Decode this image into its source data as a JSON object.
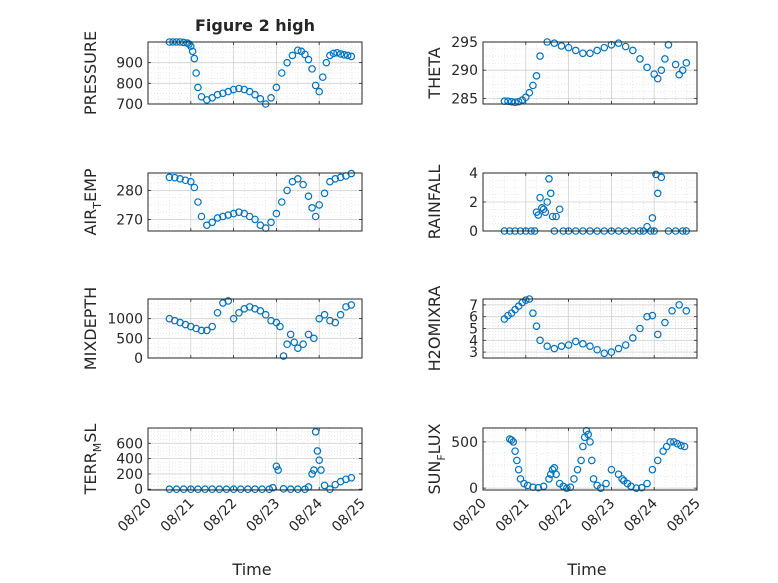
{
  "figure": {
    "title": "Figure 2 high"
  },
  "style": {
    "marker_color": "#0072BD",
    "axis_color": "#262626",
    "grid_color": "#d9d9d9"
  },
  "x_axis": {
    "type": "date",
    "tick_values": [
      "2018-08-20",
      "2018-08-21",
      "2018-08-22",
      "2018-08-23",
      "2018-08-24",
      "2018-08-25"
    ],
    "tick_labels": [
      "08/20",
      "08/21",
      "08/22",
      "08/23",
      "08/24",
      "08/25"
    ],
    "label": "Time",
    "range": [
      "2018-08-20",
      "2018-08-25"
    ]
  },
  "chart_data": [
    {
      "type": "scatter",
      "title": "Figure 2 high",
      "ylabel": "PRESSURE",
      "ylim": [
        700,
        1000
      ],
      "yticks": [
        700,
        800,
        900
      ],
      "ytick_labels": [
        "700",
        "800",
        "900"
      ],
      "grid": "on",
      "minor_grid": "on",
      "marker": "open-circle",
      "x": [
        "08-20 12:00",
        "08-20 14:00",
        "08-20 16:00",
        "08-20 18:00",
        "08-20 20:00",
        "08-20 22:00",
        "08-20 23:00",
        "08-21 00:00",
        "08-21 01:00",
        "08-21 02:00",
        "08-21 03:00",
        "08-21 04:00",
        "08-21 06:00",
        "08-21 09:00",
        "08-21 12:00",
        "08-21 15:00",
        "08-21 18:00",
        "08-21 21:00",
        "08-22 00:00",
        "08-22 03:00",
        "08-22 06:00",
        "08-22 09:00",
        "08-22 12:00",
        "08-22 15:00",
        "08-22 18:00",
        "08-22 21:00",
        "08-23 00:00",
        "08-23 03:00",
        "08-23 06:00",
        "08-23 09:00",
        "08-23 12:00",
        "08-23 14:00",
        "08-23 16:00",
        "08-23 18:00",
        "08-23 20:00",
        "08-23 22:00",
        "08-24 00:00",
        "08-24 02:00",
        "08-24 04:00",
        "08-24 06:00",
        "08-24 08:00",
        "08-24 10:00",
        "08-24 12:00",
        "08-24 14:00",
        "08-24 16:00",
        "08-24 18:00"
      ],
      "y": [
        1000,
        1000,
        1000,
        1000,
        998,
        995,
        990,
        980,
        955,
        920,
        850,
        780,
        735,
        720,
        730,
        745,
        752,
        760,
        770,
        775,
        770,
        760,
        745,
        725,
        700,
        730,
        780,
        850,
        900,
        935,
        960,
        955,
        940,
        915,
        870,
        790,
        760,
        830,
        900,
        935,
        945,
        948,
        942,
        938,
        935,
        930
      ]
    },
    {
      "type": "scatter",
      "ylabel": "THETA",
      "ylim": [
        284,
        295
      ],
      "yticks": [
        285,
        290,
        295
      ],
      "ytick_labels": [
        "285",
        "290",
        "295"
      ],
      "grid": "on",
      "minor_grid": "on",
      "marker": "open-circle",
      "x": [
        "08-20 12:00",
        "08-20 14:00",
        "08-20 16:00",
        "08-20 18:00",
        "08-20 20:00",
        "08-20 22:00",
        "08-21 00:00",
        "08-21 02:00",
        "08-21 04:00",
        "08-21 06:00",
        "08-21 08:00",
        "08-21 12:00",
        "08-21 16:00",
        "08-21 20:00",
        "08-22 00:00",
        "08-22 04:00",
        "08-22 08:00",
        "08-22 12:00",
        "08-22 16:00",
        "08-22 20:00",
        "08-23 00:00",
        "08-23 04:00",
        "08-23 08:00",
        "08-23 12:00",
        "08-23 16:00",
        "08-23 20:00",
        "08-24 00:00",
        "08-24 02:00",
        "08-24 04:00",
        "08-24 06:00",
        "08-24 08:00",
        "08-24 12:00",
        "08-24 14:00",
        "08-24 16:00",
        "08-24 18:00"
      ],
      "y": [
        284.5,
        284.5,
        284.4,
        284.3,
        284.4,
        284.7,
        285.2,
        286.0,
        287.3,
        289.0,
        292.5,
        295.0,
        294.8,
        294.3,
        294.0,
        293.5,
        293.0,
        293.0,
        293.5,
        294.0,
        294.5,
        294.8,
        294.2,
        293.5,
        292.0,
        290.5,
        289.3,
        288.5,
        290.0,
        292.0,
        294.5,
        291.0,
        289.2,
        290.0,
        291.3
      ]
    },
    {
      "type": "scatter",
      "ylabel": "AIR_TEMP",
      "ylabel_display": [
        "AIR",
        "T",
        "EMP"
      ],
      "ylim": [
        266,
        286
      ],
      "yticks": [
        270,
        280
      ],
      "ytick_labels": [
        "270",
        "280"
      ],
      "grid": "on",
      "minor_grid": "on",
      "marker": "open-circle",
      "x": [
        "08-20 12:00",
        "08-20 15:00",
        "08-20 18:00",
        "08-20 21:00",
        "08-21 00:00",
        "08-21 02:00",
        "08-21 04:00",
        "08-21 06:00",
        "08-21 09:00",
        "08-21 12:00",
        "08-21 15:00",
        "08-21 18:00",
        "08-21 21:00",
        "08-22 00:00",
        "08-22 03:00",
        "08-22 06:00",
        "08-22 09:00",
        "08-22 12:00",
        "08-22 15:00",
        "08-22 18:00",
        "08-22 21:00",
        "08-23 00:00",
        "08-23 03:00",
        "08-23 06:00",
        "08-23 09:00",
        "08-23 12:00",
        "08-23 15:00",
        "08-23 18:00",
        "08-23 20:00",
        "08-23 22:00",
        "08-24 00:00",
        "08-24 03:00",
        "08-24 06:00",
        "08-24 09:00",
        "08-24 12:00",
        "08-24 15:00",
        "08-24 18:00"
      ],
      "y": [
        284.5,
        284.4,
        284.0,
        283.5,
        283.0,
        281.0,
        276.0,
        271.0,
        268.0,
        269.0,
        270.5,
        271.0,
        271.5,
        272.0,
        272.5,
        272.0,
        271.0,
        270.0,
        268.0,
        267.0,
        269.0,
        272.0,
        276.0,
        280.0,
        283.0,
        284.0,
        282.0,
        278.0,
        274.0,
        271.0,
        275.0,
        279.0,
        283.0,
        284.0,
        284.5,
        285.0,
        285.8
      ]
    },
    {
      "type": "scatter",
      "ylabel": "RAINFALL",
      "ylim": [
        0,
        4
      ],
      "yticks": [
        0,
        2,
        4
      ],
      "ytick_labels": [
        "0",
        "2",
        "4"
      ],
      "grid": "on",
      "minor_grid": "on",
      "marker": "open-circle",
      "x": [
        "08-20 12:00",
        "08-20 15:00",
        "08-20 18:00",
        "08-20 21:00",
        "08-21 00:00",
        "08-21 03:00",
        "08-21 05:00",
        "08-21 06:00",
        "08-21 07:00",
        "08-21 08:00",
        "08-21 09:00",
        "08-21 10:00",
        "08-21 11:00",
        "08-21 12:00",
        "08-21 13:00",
        "08-21 14:00",
        "08-21 15:00",
        "08-21 16:00",
        "08-21 17:00",
        "08-21 19:00",
        "08-21 21:00",
        "08-22 00:00",
        "08-22 04:00",
        "08-22 08:00",
        "08-22 12:00",
        "08-22 16:00",
        "08-22 20:00",
        "08-23 00:00",
        "08-23 04:00",
        "08-23 08:00",
        "08-23 12:00",
        "08-23 16:00",
        "08-23 18:00",
        "08-23 20:00",
        "08-23 22:00",
        "08-23 23:00",
        "08-24 00:00",
        "08-24 01:00",
        "08-24 02:00",
        "08-24 04:00",
        "08-24 08:00",
        "08-24 12:00",
        "08-24 16:00",
        "08-24 18:00"
      ],
      "y": [
        0,
        0,
        0,
        0,
        0,
        0,
        0,
        1.3,
        1.1,
        2.3,
        1.6,
        1.5,
        1.3,
        2.0,
        3.6,
        2.6,
        1.0,
        0,
        1.0,
        1.5,
        0,
        0,
        0,
        0,
        0,
        0,
        0,
        0,
        0,
        0,
        0,
        0,
        0,
        0.3,
        0,
        0.9,
        0,
        3.9,
        2.6,
        3.7,
        0,
        0,
        0,
        0
      ]
    },
    {
      "type": "scatter",
      "ylabel": "MIXDEPTH",
      "ylim": [
        0,
        1500
      ],
      "yticks": [
        0,
        500,
        1000
      ],
      "ytick_labels": [
        "0",
        "500",
        "1000"
      ],
      "grid": "on",
      "minor_grid": "on",
      "marker": "open-circle",
      "x": [
        "08-20 12:00",
        "08-20 15:00",
        "08-20 18:00",
        "08-20 21:00",
        "08-21 00:00",
        "08-21 03:00",
        "08-21 06:00",
        "08-21 09:00",
        "08-21 12:00",
        "08-21 15:00",
        "08-21 18:00",
        "08-21 21:00",
        "08-22 00:00",
        "08-22 03:00",
        "08-22 06:00",
        "08-22 09:00",
        "08-22 12:00",
        "08-22 15:00",
        "08-22 18:00",
        "08-22 21:00",
        "08-23 00:00",
        "08-23 02:00",
        "08-23 04:00",
        "08-23 06:00",
        "08-23 08:00",
        "08-23 10:00",
        "08-23 12:00",
        "08-23 15:00",
        "08-23 18:00",
        "08-23 21:00",
        "08-24 00:00",
        "08-24 03:00",
        "08-24 06:00",
        "08-24 09:00",
        "08-24 12:00",
        "08-24 15:00",
        "08-24 18:00"
      ],
      "y": [
        1000,
        950,
        900,
        850,
        800,
        750,
        700,
        700,
        800,
        1150,
        1400,
        1450,
        1000,
        1150,
        1250,
        1300,
        1250,
        1200,
        1100,
        950,
        900,
        800,
        50,
        350,
        600,
        400,
        250,
        350,
        600,
        500,
        1000,
        1100,
        950,
        900,
        1100,
        1300,
        1350
      ]
    },
    {
      "type": "scatter",
      "ylabel": "H2OMIXRA",
      "ylim": [
        2.5,
        7.5
      ],
      "yticks": [
        3,
        4,
        5,
        6,
        7
      ],
      "ytick_labels": [
        "3",
        "4",
        "5",
        "6",
        "7"
      ],
      "grid": "on",
      "minor_grid": "on",
      "marker": "open-circle",
      "x": [
        "08-20 12:00",
        "08-20 14:00",
        "08-20 16:00",
        "08-20 18:00",
        "08-20 20:00",
        "08-20 22:00",
        "08-21 00:00",
        "08-21 02:00",
        "08-21 04:00",
        "08-21 06:00",
        "08-21 08:00",
        "08-21 12:00",
        "08-21 16:00",
        "08-21 20:00",
        "08-22 00:00",
        "08-22 04:00",
        "08-22 08:00",
        "08-22 12:00",
        "08-22 16:00",
        "08-22 20:00",
        "08-23 00:00",
        "08-23 04:00",
        "08-23 08:00",
        "08-23 12:00",
        "08-23 16:00",
        "08-23 20:00",
        "08-23 23:00",
        "08-24 02:00",
        "08-24 06:00",
        "08-24 10:00",
        "08-24 14:00",
        "08-24 18:00"
      ],
      "y": [
        5.8,
        6.1,
        6.3,
        6.6,
        6.9,
        7.2,
        7.4,
        7.5,
        6.3,
        5.2,
        4.0,
        3.5,
        3.3,
        3.5,
        3.6,
        3.9,
        3.7,
        3.5,
        3.2,
        2.9,
        3.0,
        3.3,
        3.6,
        4.2,
        5.0,
        6.0,
        6.1,
        4.5,
        5.5,
        6.5,
        7.0,
        6.5
      ]
    },
    {
      "type": "scatter",
      "ylabel": "TERR_MSL",
      "ylabel_display": [
        "TERR",
        "M",
        "SL"
      ],
      "ylim": [
        -10,
        800
      ],
      "yticks": [
        0,
        200,
        400,
        600
      ],
      "ytick_labels": [
        "0",
        "200",
        "400",
        "600"
      ],
      "grid": "on",
      "minor_grid": "on",
      "marker": "open-circle",
      "x": [
        "08-20 12:00",
        "08-20 16:00",
        "08-20 20:00",
        "08-21 00:00",
        "08-21 04:00",
        "08-21 08:00",
        "08-21 12:00",
        "08-21 16:00",
        "08-21 20:00",
        "08-22 00:00",
        "08-22 04:00",
        "08-22 08:00",
        "08-22 12:00",
        "08-22 16:00",
        "08-22 20:00",
        "08-22 22:00",
        "08-23 00:00",
        "08-23 01:00",
        "08-23 04:00",
        "08-23 08:00",
        "08-23 12:00",
        "08-23 16:00",
        "08-23 18:00",
        "08-23 20:00",
        "08-23 21:00",
        "08-23 22:00",
        "08-23 23:00",
        "08-24 00:00",
        "08-24 01:00",
        "08-24 03:00",
        "08-24 06:00",
        "08-24 09:00",
        "08-24 12:00",
        "08-24 15:00",
        "08-24 18:00"
      ],
      "y": [
        0,
        0,
        0,
        0,
        0,
        0,
        0,
        0,
        0,
        0,
        0,
        0,
        0,
        0,
        0,
        20,
        300,
        250,
        5,
        0,
        0,
        0,
        30,
        200,
        250,
        750,
        500,
        380,
        250,
        50,
        0,
        60,
        100,
        130,
        150
      ]
    },
    {
      "type": "scatter",
      "ylabel": "SUN_FLUX",
      "ylabel_display": [
        "SUN",
        "F",
        "LUX"
      ],
      "ylim": [
        -20,
        650
      ],
      "yticks": [
        0,
        500
      ],
      "ytick_labels": [
        "0",
        "500"
      ],
      "grid": "on",
      "minor_grid": "on",
      "marker": "open-circle",
      "x": [
        "08-20 15:00",
        "08-20 16:00",
        "08-20 17:00",
        "08-20 18:00",
        "08-20 19:00",
        "08-20 20:00",
        "08-20 21:00",
        "08-20 23:00",
        "08-21 01:00",
        "08-21 04:00",
        "08-21 07:00",
        "08-21 10:00",
        "08-21 13:00",
        "08-21 14:00",
        "08-21 15:00",
        "08-21 16:00",
        "08-21 17:00",
        "08-21 19:00",
        "08-21 21:00",
        "08-21 23:00",
        "08-22 01:00",
        "08-22 03:00",
        "08-22 05:00",
        "08-22 07:00",
        "08-22 08:00",
        "08-22 09:00",
        "08-22 10:00",
        "08-22 11:00",
        "08-22 12:00",
        "08-22 13:00",
        "08-22 14:00",
        "08-22 16:00",
        "08-22 18:00",
        "08-22 21:00",
        "08-23 00:00",
        "08-23 04:00",
        "08-23 06:00",
        "08-23 07:00",
        "08-23 09:00",
        "08-23 11:00",
        "08-23 14:00",
        "08-23 17:00",
        "08-23 20:00",
        "08-23 23:00",
        "08-24 02:00",
        "08-24 05:00",
        "08-24 07:00",
        "08-24 09:00",
        "08-24 11:00",
        "08-24 13:00",
        "08-24 15:00",
        "08-24 17:00"
      ],
      "y": [
        530,
        520,
        500,
        400,
        300,
        200,
        100,
        50,
        30,
        10,
        5,
        20,
        100,
        150,
        200,
        220,
        150,
        50,
        20,
        0,
        10,
        100,
        200,
        300,
        450,
        550,
        620,
        580,
        500,
        300,
        100,
        30,
        0,
        50,
        200,
        150,
        100,
        80,
        50,
        20,
        0,
        5,
        50,
        200,
        300,
        400,
        450,
        500,
        500,
        480,
        460,
        450
      ]
    }
  ]
}
